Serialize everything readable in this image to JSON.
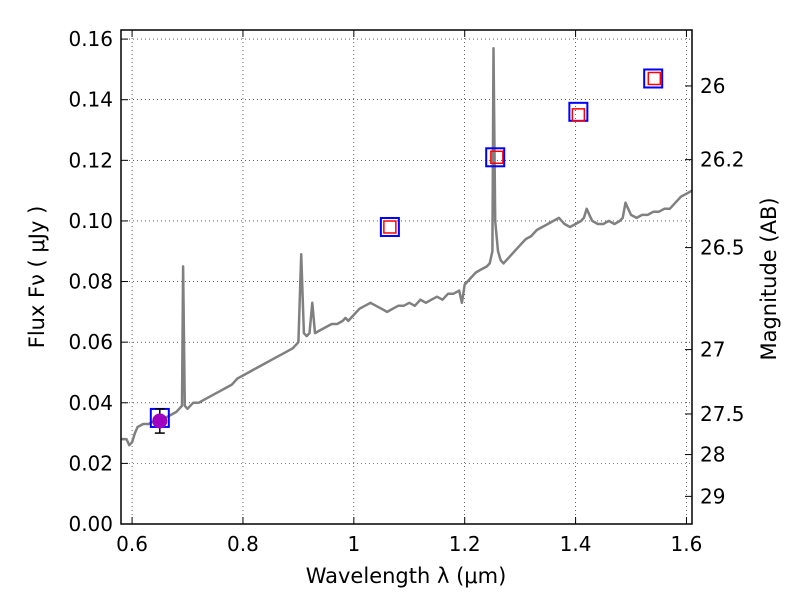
{
  "chart_data": {
    "type": "scatter",
    "xlabel": "Wavelength  λ (μm)",
    "ylabel": "Flux  Fν  ( μJy )",
    "y2label": "Magnitude (AB)",
    "xlim": [
      0.58,
      1.61
    ],
    "ylim": [
      0.0,
      0.163
    ],
    "grid": true,
    "grid_style": "dotted",
    "x_ticks": [
      {
        "value": 0.6,
        "label": "0.6"
      },
      {
        "value": 0.8,
        "label": "0.8"
      },
      {
        "value": 1.0,
        "label": "1"
      },
      {
        "value": 1.2,
        "label": "1.2"
      },
      {
        "value": 1.4,
        "label": "1.4"
      },
      {
        "value": 1.6,
        "label": "1.6"
      }
    ],
    "y_ticks": [
      {
        "value": 0.0,
        "label": "0.00"
      },
      {
        "value": 0.02,
        "label": "0.02"
      },
      {
        "value": 0.04,
        "label": "0.04"
      },
      {
        "value": 0.06,
        "label": "0.06"
      },
      {
        "value": 0.08,
        "label": "0.08"
      },
      {
        "value": 0.1,
        "label": "0.10"
      },
      {
        "value": 0.12,
        "label": "0.12"
      },
      {
        "value": 0.14,
        "label": "0.14"
      },
      {
        "value": 0.16,
        "label": "0.16"
      }
    ],
    "y2_ticks": [
      {
        "value": 26,
        "label": "26"
      },
      {
        "value": 26.2,
        "label": "26.2"
      },
      {
        "value": 26.5,
        "label": "26.5"
      },
      {
        "value": 27,
        "label": "27"
      },
      {
        "value": 27.5,
        "label": "27.5"
      },
      {
        "value": 28,
        "label": "28"
      },
      {
        "value": 29,
        "label": "29"
      }
    ],
    "colors": {
      "spectrum": "#808080",
      "photometry_box": "#0000ff",
      "model_box": "#ff0000",
      "observed_point": "#a000c0"
    },
    "series": [
      {
        "style": "line",
        "points": [
          [
            0.58,
            0.028
          ],
          [
            0.59,
            0.028
          ],
          [
            0.595,
            0.026
          ],
          [
            0.6,
            0.027
          ],
          [
            0.605,
            0.03
          ],
          [
            0.61,
            0.032
          ],
          [
            0.62,
            0.033
          ],
          [
            0.63,
            0.033
          ],
          [
            0.64,
            0.034
          ],
          [
            0.65,
            0.035
          ],
          [
            0.66,
            0.035
          ],
          [
            0.67,
            0.036
          ],
          [
            0.68,
            0.037
          ],
          [
            0.685,
            0.038
          ],
          [
            0.69,
            0.039
          ],
          [
            0.692,
            0.085
          ],
          [
            0.695,
            0.039
          ],
          [
            0.7,
            0.038
          ],
          [
            0.71,
            0.04
          ],
          [
            0.72,
            0.04
          ],
          [
            0.73,
            0.041
          ],
          [
            0.74,
            0.042
          ],
          [
            0.75,
            0.043
          ],
          [
            0.76,
            0.044
          ],
          [
            0.77,
            0.045
          ],
          [
            0.78,
            0.046
          ],
          [
            0.79,
            0.048
          ],
          [
            0.8,
            0.049
          ],
          [
            0.81,
            0.05
          ],
          [
            0.82,
            0.051
          ],
          [
            0.83,
            0.052
          ],
          [
            0.84,
            0.053
          ],
          [
            0.85,
            0.054
          ],
          [
            0.86,
            0.055
          ],
          [
            0.87,
            0.056
          ],
          [
            0.88,
            0.057
          ],
          [
            0.89,
            0.058
          ],
          [
            0.9,
            0.06
          ],
          [
            0.905,
            0.089
          ],
          [
            0.91,
            0.063
          ],
          [
            0.915,
            0.062
          ],
          [
            0.92,
            0.063
          ],
          [
            0.925,
            0.073
          ],
          [
            0.93,
            0.063
          ],
          [
            0.94,
            0.064
          ],
          [
            0.95,
            0.065
          ],
          [
            0.96,
            0.066
          ],
          [
            0.97,
            0.066
          ],
          [
            0.98,
            0.067
          ],
          [
            0.985,
            0.068
          ],
          [
            0.99,
            0.067
          ],
          [
            1.0,
            0.069
          ],
          [
            1.01,
            0.071
          ],
          [
            1.02,
            0.072
          ],
          [
            1.03,
            0.073
          ],
          [
            1.04,
            0.072
          ],
          [
            1.05,
            0.071
          ],
          [
            1.06,
            0.07
          ],
          [
            1.07,
            0.071
          ],
          [
            1.08,
            0.072
          ],
          [
            1.09,
            0.072
          ],
          [
            1.1,
            0.073
          ],
          [
            1.11,
            0.072
          ],
          [
            1.12,
            0.074
          ],
          [
            1.13,
            0.073
          ],
          [
            1.14,
            0.074
          ],
          [
            1.15,
            0.075
          ],
          [
            1.16,
            0.074
          ],
          [
            1.17,
            0.076
          ],
          [
            1.18,
            0.076
          ],
          [
            1.19,
            0.077
          ],
          [
            1.195,
            0.073
          ],
          [
            1.2,
            0.079
          ],
          [
            1.21,
            0.081
          ],
          [
            1.22,
            0.083
          ],
          [
            1.23,
            0.084
          ],
          [
            1.24,
            0.085
          ],
          [
            1.245,
            0.086
          ],
          [
            1.25,
            0.09
          ],
          [
            1.252,
            0.157
          ],
          [
            1.255,
            0.1
          ],
          [
            1.26,
            0.09
          ],
          [
            1.265,
            0.087
          ],
          [
            1.27,
            0.086
          ],
          [
            1.28,
            0.088
          ],
          [
            1.29,
            0.09
          ],
          [
            1.3,
            0.092
          ],
          [
            1.31,
            0.094
          ],
          [
            1.32,
            0.095
          ],
          [
            1.33,
            0.097
          ],
          [
            1.34,
            0.098
          ],
          [
            1.35,
            0.099
          ],
          [
            1.36,
            0.1
          ],
          [
            1.37,
            0.101
          ],
          [
            1.38,
            0.099
          ],
          [
            1.39,
            0.098
          ],
          [
            1.4,
            0.099
          ],
          [
            1.41,
            0.1
          ],
          [
            1.415,
            0.101
          ],
          [
            1.42,
            0.104
          ],
          [
            1.425,
            0.102
          ],
          [
            1.43,
            0.1
          ],
          [
            1.44,
            0.099
          ],
          [
            1.45,
            0.099
          ],
          [
            1.46,
            0.1
          ],
          [
            1.47,
            0.099
          ],
          [
            1.48,
            0.1
          ],
          [
            1.485,
            0.101
          ],
          [
            1.49,
            0.106
          ],
          [
            1.495,
            0.104
          ],
          [
            1.5,
            0.102
          ],
          [
            1.51,
            0.101
          ],
          [
            1.52,
            0.102
          ],
          [
            1.53,
            0.102
          ],
          [
            1.54,
            0.103
          ],
          [
            1.55,
            0.103
          ],
          [
            1.56,
            0.104
          ],
          [
            1.57,
            0.104
          ],
          [
            1.58,
            0.106
          ],
          [
            1.59,
            0.108
          ],
          [
            1.6,
            0.109
          ],
          [
            1.61,
            0.11
          ]
        ]
      },
      {
        "style": "square-marker",
        "color": "#0000ff",
        "points": [
          [
            0.65,
            0.035
          ],
          [
            1.065,
            0.098
          ],
          [
            1.255,
            0.121
          ],
          [
            1.405,
            0.136
          ],
          [
            1.54,
            0.147
          ]
        ]
      },
      {
        "style": "square-marker",
        "color": "#ff0000",
        "points": [
          [
            1.065,
            0.098
          ],
          [
            1.258,
            0.121
          ],
          [
            1.405,
            0.135
          ],
          [
            1.542,
            0.147
          ]
        ]
      },
      {
        "style": "point-with-error",
        "color": "#a000c0",
        "points": [
          {
            "x": 0.65,
            "y": 0.034,
            "yerr": 0.004
          }
        ]
      }
    ]
  }
}
